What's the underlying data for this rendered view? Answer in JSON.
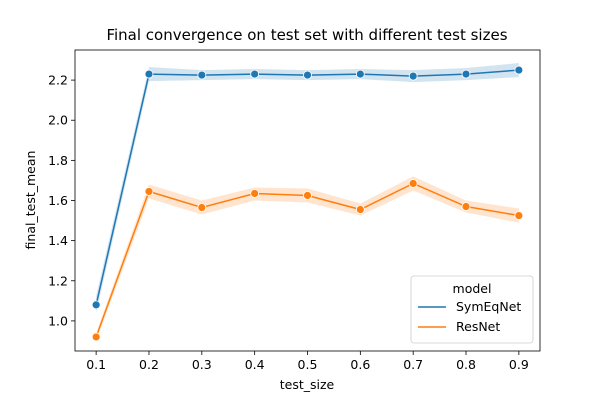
{
  "chart_data": {
    "type": "line",
    "title": "Final convergence on test set with different test sizes",
    "xlabel": "test_size",
    "ylabel": "final_test_mean",
    "x": [
      0.1,
      0.2,
      0.3,
      0.4,
      0.5,
      0.6,
      0.7,
      0.8,
      0.9
    ],
    "x_ticks": [
      "0.1",
      "0.2",
      "0.3",
      "0.4",
      "0.5",
      "0.6",
      "0.7",
      "0.8",
      "0.9"
    ],
    "y_ticks": [
      "1.0",
      "1.2",
      "1.4",
      "1.6",
      "1.8",
      "2.0",
      "2.2"
    ],
    "y_tick_values": [
      1.0,
      1.2,
      1.4,
      1.6,
      1.8,
      2.0,
      2.2
    ],
    "xlim": [
      0.06,
      0.94
    ],
    "ylim": [
      0.85,
      2.35
    ],
    "grid": false,
    "legend": {
      "title": "model",
      "placement": "lower-right"
    },
    "series": [
      {
        "name": "SymEqNet",
        "color": "#1f77b4",
        "values": [
          1.08,
          2.23,
          2.225,
          2.23,
          2.225,
          2.23,
          2.22,
          2.23,
          2.25
        ],
        "lower": [
          1.04,
          2.195,
          2.2,
          2.205,
          2.2,
          2.205,
          2.19,
          2.2,
          2.215
        ],
        "upper": [
          1.125,
          2.265,
          2.25,
          2.255,
          2.25,
          2.255,
          2.25,
          2.26,
          2.285
        ]
      },
      {
        "name": "ResNet",
        "color": "#ff7f0e",
        "values": [
          0.92,
          1.645,
          1.565,
          1.635,
          1.625,
          1.555,
          1.685,
          1.57,
          1.525
        ],
        "lower": [
          0.9,
          1.61,
          1.53,
          1.6,
          1.59,
          1.525,
          1.65,
          1.54,
          1.49
        ],
        "upper": [
          0.94,
          1.68,
          1.6,
          1.665,
          1.66,
          1.585,
          1.72,
          1.6,
          1.56
        ]
      }
    ]
  }
}
